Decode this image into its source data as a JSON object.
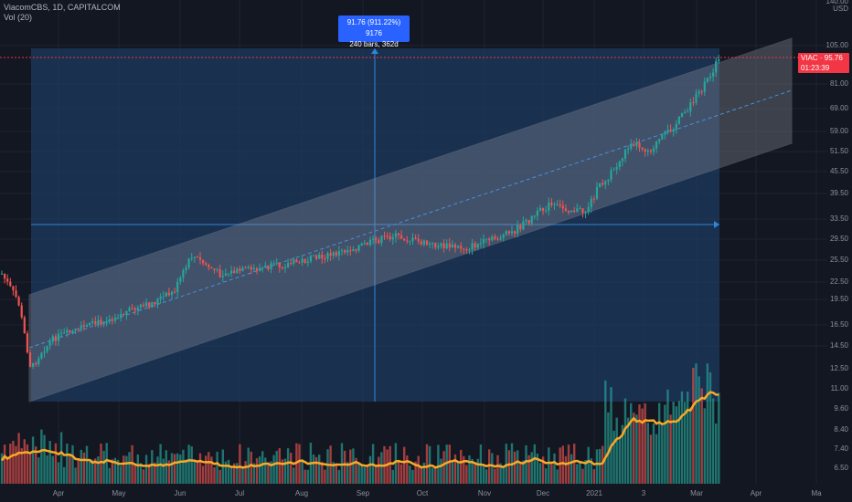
{
  "legend": {
    "symbol_line": "ViacomCBS, 1D, CAPITALCOM",
    "volume_line": "Vol (20)"
  },
  "measure": {
    "line1": "91.76 (911.22%) 9176",
    "line2": "240 bars, 362d"
  },
  "price_tag": {
    "symbol": "VIAC",
    "price": "95.76",
    "countdown": "01:23:39"
  },
  "colors": {
    "up": "#26a69a",
    "down": "#ef5350",
    "volume_ma": "#f7a928",
    "measure_fill": "#1e3a5f",
    "channel": "#8a8f9c",
    "price_line": "#f23645"
  },
  "y_axis": {
    "currency": "USD",
    "ticks": [
      "140.00",
      "105.00",
      "81.00",
      "69.00",
      "59.00",
      "51.50",
      "45.50",
      "39.50",
      "33.50",
      "29.50",
      "25.50",
      "22.50",
      "19.50",
      "16.50",
      "14.50",
      "12.50",
      "11.00",
      "9.60",
      "8.40",
      "7.40",
      "6.50"
    ]
  },
  "x_axis": {
    "months": [
      "Apr",
      "May",
      "Jun",
      "Jul",
      "Aug",
      "Sep",
      "Oct",
      "Nov",
      "Dec",
      "2021",
      "3",
      "Mar",
      "Apr",
      "Ma"
    ]
  },
  "chart_data": {
    "type": "candlestick",
    "price_scale": "log",
    "price_range": [
      9.2,
      140
    ],
    "series_end_price": 95.76,
    "measured_start_price": 10.07,
    "measured_change": 91.76,
    "measured_change_pct": 911.22,
    "measured_bars": 240,
    "measured_days": 362
  }
}
